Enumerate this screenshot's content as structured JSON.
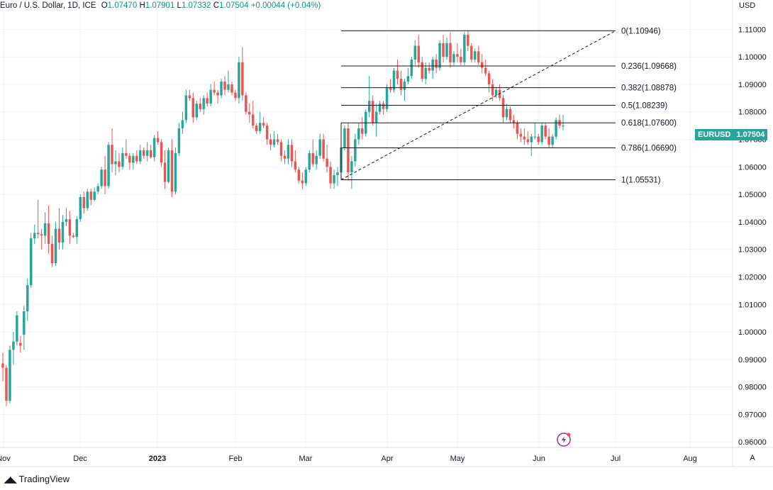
{
  "legend": {
    "title": "Euro / U.S. Dollar, 1D, ICE",
    "open_label": "O",
    "open": "1.07470",
    "high_label": "H",
    "high": "1.07901",
    "low_label": "L",
    "low": "1.07332",
    "close_label": "C",
    "close": "1.07504",
    "change": "+0.00044 (+0.04%)"
  },
  "currency": "USD",
  "price_tag": {
    "symbol": "EURUSD",
    "price": "1.07504"
  },
  "watermark": {
    "text": "TradingView"
  },
  "auto_button": "A",
  "colors": {
    "up": "#26a69a",
    "down": "#ef5350",
    "grid": "#f0f3fa",
    "fib": "#131722",
    "accent": "#9c27b0"
  },
  "chart_data": {
    "type": "candlestick",
    "symbol": "EURUSD",
    "timeframe": "1D",
    "x_ticks": [
      "Nov",
      "Dec",
      "2023",
      "Feb",
      "Mar",
      "Apr",
      "May",
      "Jun",
      "Jul",
      "Aug"
    ],
    "y_ticks": [
      "0.96000",
      "0.97000",
      "0.98000",
      "0.99000",
      "1.00000",
      "1.01000",
      "1.02000",
      "1.03000",
      "1.04000",
      "1.05000",
      "1.06000",
      "1.07000",
      "1.08000",
      "1.09000",
      "1.10000",
      "1.11000"
    ],
    "ylim": [
      0.958,
      1.1155
    ],
    "fibonacci": [
      {
        "level": "0",
        "price": 1.10946
      },
      {
        "level": "0.236",
        "price": 1.09668
      },
      {
        "level": "0.382",
        "price": 1.08878
      },
      {
        "level": "0.5",
        "price": 1.08239
      },
      {
        "level": "0.618",
        "price": 1.076
      },
      {
        "level": "0.786",
        "price": 1.0669
      },
      {
        "level": "1",
        "price": 1.05531
      }
    ],
    "candles": [
      [
        0.9885,
        0.9925,
        0.982,
        0.987
      ],
      [
        0.987,
        0.988,
        0.973,
        0.975
      ],
      [
        0.975,
        0.995,
        0.974,
        0.9935
      ],
      [
        0.9935,
        1.0,
        0.988,
        0.9965
      ],
      [
        0.9965,
        1.0075,
        0.995,
        1.006
      ],
      [
        0.996,
        0.9985,
        0.9925,
        0.995
      ],
      [
        0.999,
        1.0095,
        0.9935,
        1.0075
      ],
      [
        1.0075,
        1.0195,
        1.004,
        1.017
      ],
      [
        1.017,
        1.036,
        1.016,
        1.034
      ],
      [
        1.034,
        1.039,
        1.032,
        1.036
      ],
      [
        1.036,
        1.048,
        1.034,
        1.0355
      ],
      [
        1.0355,
        1.0375,
        1.03,
        1.035
      ],
      [
        1.035,
        1.0435,
        1.032,
        1.0395
      ],
      [
        1.0395,
        1.046,
        1.0285,
        1.032
      ],
      [
        1.032,
        1.035,
        1.0235,
        1.025
      ],
      [
        1.025,
        1.04,
        1.024,
        1.0375
      ],
      [
        1.0375,
        1.045,
        1.03,
        1.0325
      ],
      [
        1.0325,
        1.0425,
        1.03,
        1.04
      ],
      [
        1.04,
        1.045,
        1.0385,
        1.041
      ],
      [
        1.041,
        1.044,
        1.032,
        1.035
      ],
      [
        1.035,
        1.036,
        1.034,
        1.0345
      ],
      [
        1.0345,
        1.042,
        1.032,
        1.041
      ],
      [
        1.041,
        1.05,
        1.04,
        1.049
      ],
      [
        1.049,
        1.051,
        1.043,
        1.045
      ],
      [
        1.045,
        1.052,
        1.044,
        1.051
      ],
      [
        1.051,
        1.052,
        1.046,
        1.048
      ],
      [
        1.048,
        1.0525,
        1.0475,
        1.051
      ],
      [
        1.051,
        1.054,
        1.05,
        1.053
      ],
      [
        1.053,
        1.06,
        1.052,
        1.059
      ],
      [
        1.059,
        1.064,
        1.05,
        1.053
      ],
      [
        1.053,
        1.069,
        1.052,
        1.068
      ],
      [
        1.068,
        1.074,
        1.058,
        1.061
      ],
      [
        1.061,
        1.066,
        1.057,
        1.062
      ],
      [
        1.062,
        1.065,
        1.058,
        1.06
      ],
      [
        1.06,
        1.067,
        1.059,
        1.065
      ],
      [
        1.065,
        1.07,
        1.063,
        1.064
      ],
      [
        1.064,
        1.065,
        1.059,
        1.0615
      ],
      [
        1.0615,
        1.065,
        1.059,
        1.064
      ],
      [
        1.064,
        1.066,
        1.061,
        1.062
      ],
      [
        1.062,
        1.068,
        1.061,
        1.066
      ],
      [
        1.066,
        1.067,
        1.063,
        1.064
      ],
      [
        1.064,
        1.069,
        1.062,
        1.066
      ],
      [
        1.066,
        1.068,
        1.063,
        1.0635
      ],
      [
        1.0635,
        1.0715,
        1.062,
        1.0705
      ],
      [
        1.0705,
        1.073,
        1.068,
        1.069
      ],
      [
        1.069,
        1.07,
        1.06,
        1.0615
      ],
      [
        1.0615,
        1.066,
        1.052,
        1.0545
      ],
      [
        1.0545,
        1.067,
        1.054,
        1.066
      ],
      [
        1.066,
        1.07,
        1.049,
        1.051
      ],
      [
        1.051,
        1.067,
        1.05,
        1.065
      ],
      [
        1.065,
        1.076,
        1.064,
        1.074
      ],
      [
        1.074,
        1.08,
        1.072,
        1.077
      ],
      [
        1.077,
        1.088,
        1.076,
        1.086
      ],
      [
        1.086,
        1.088,
        1.084,
        1.085
      ],
      [
        1.085,
        1.087,
        1.076,
        1.078
      ],
      [
        1.078,
        1.084,
        1.077,
        1.083
      ],
      [
        1.083,
        1.085,
        1.08,
        1.081
      ],
      [
        1.081,
        1.086,
        1.079,
        1.085
      ],
      [
        1.085,
        1.087,
        1.082,
        1.083
      ],
      [
        1.083,
        1.09,
        1.082,
        1.088
      ],
      [
        1.088,
        1.091,
        1.086,
        1.087
      ],
      [
        1.087,
        1.088,
        1.083,
        1.086
      ],
      [
        1.086,
        1.092,
        1.085,
        1.091
      ],
      [
        1.091,
        1.093,
        1.086,
        1.088
      ],
      [
        1.088,
        1.095,
        1.087,
        1.09
      ],
      [
        1.09,
        1.091,
        1.086,
        1.087
      ],
      [
        1.087,
        1.088,
        1.084,
        1.085
      ],
      [
        1.085,
        1.1,
        1.083,
        1.098
      ],
      [
        1.098,
        1.1035,
        1.084,
        1.086
      ],
      [
        1.086,
        1.087,
        1.079,
        1.08
      ],
      [
        1.08,
        1.083,
        1.076,
        1.079
      ],
      [
        1.079,
        1.084,
        1.074,
        1.075
      ],
      [
        1.075,
        1.076,
        1.072,
        1.073
      ],
      [
        1.073,
        1.08,
        1.072,
        1.076
      ],
      [
        1.076,
        1.078,
        1.074,
        1.075
      ],
      [
        1.075,
        1.076,
        1.068,
        1.07
      ],
      [
        1.07,
        1.072,
        1.066,
        1.068
      ],
      [
        1.068,
        1.073,
        1.067,
        1.07
      ],
      [
        1.07,
        1.072,
        1.068,
        1.069
      ],
      [
        1.069,
        1.07,
        1.062,
        1.064
      ],
      [
        1.064,
        1.066,
        1.061,
        1.063
      ],
      [
        1.063,
        1.07,
        1.061,
        1.068
      ],
      [
        1.068,
        1.07,
        1.06,
        1.062
      ],
      [
        1.062,
        1.066,
        1.058,
        1.059
      ],
      [
        1.059,
        1.06,
        1.054,
        1.055
      ],
      [
        1.055,
        1.058,
        1.052,
        1.054
      ],
      [
        1.054,
        1.06,
        1.053,
        1.059
      ],
      [
        1.059,
        1.066,
        1.058,
        1.065
      ],
      [
        1.065,
        1.07,
        1.06,
        1.061
      ],
      [
        1.061,
        1.066,
        1.059,
        1.064
      ],
      [
        1.064,
        1.072,
        1.063,
        1.07
      ],
      [
        1.07,
        1.072,
        1.062,
        1.063
      ],
      [
        1.063,
        1.068,
        1.058,
        1.06
      ],
      [
        1.06,
        1.062,
        1.052,
        1.054
      ],
      [
        1.054,
        1.059,
        1.052,
        1.057
      ],
      [
        1.057,
        1.06,
        1.053,
        1.058
      ],
      [
        1.058,
        1.068,
        1.057,
        1.067
      ],
      [
        1.067,
        1.075,
        1.066,
        1.074
      ],
      [
        1.074,
        1.076,
        1.055,
        1.058
      ],
      [
        1.058,
        1.064,
        1.052,
        1.062
      ],
      [
        1.062,
        1.072,
        1.06,
        1.07
      ],
      [
        1.07,
        1.076,
        1.068,
        1.074
      ],
      [
        1.074,
        1.078,
        1.07,
        1.072
      ],
      [
        1.072,
        1.081,
        1.071,
        1.08
      ],
      [
        1.08,
        1.093,
        1.078,
        1.084
      ],
      [
        1.084,
        1.086,
        1.075,
        1.076
      ],
      [
        1.076,
        1.083,
        1.071,
        1.08
      ],
      [
        1.08,
        1.084,
        1.079,
        1.083
      ],
      [
        1.083,
        1.084,
        1.079,
        1.081
      ],
      [
        1.081,
        1.09,
        1.08,
        1.089
      ],
      [
        1.089,
        1.092,
        1.087,
        1.088
      ],
      [
        1.088,
        1.096,
        1.087,
        1.095
      ],
      [
        1.095,
        1.099,
        1.09,
        1.092
      ],
      [
        1.092,
        1.095,
        1.086,
        1.088
      ],
      [
        1.088,
        1.092,
        1.084,
        1.091
      ],
      [
        1.091,
        1.096,
        1.09,
        1.093
      ],
      [
        1.093,
        1.1,
        1.092,
        1.099
      ],
      [
        1.099,
        1.106,
        1.097,
        1.104
      ],
      [
        1.104,
        1.108,
        1.096,
        1.098
      ],
      [
        1.098,
        1.1,
        1.091,
        1.092
      ],
      [
        1.092,
        1.098,
        1.09,
        1.096
      ],
      [
        1.096,
        1.098,
        1.094,
        1.095
      ],
      [
        1.095,
        1.1,
        1.092,
        1.099
      ],
      [
        1.099,
        1.101,
        1.094,
        1.096
      ],
      [
        1.096,
        1.106,
        1.095,
        1.105
      ],
      [
        1.105,
        1.108,
        1.098,
        1.1
      ],
      [
        1.1,
        1.107,
        1.099,
        1.105
      ],
      [
        1.105,
        1.109,
        1.096,
        1.098
      ],
      [
        1.098,
        1.102,
        1.097,
        1.101
      ],
      [
        1.101,
        1.105,
        1.098,
        1.1
      ],
      [
        1.1,
        1.103,
        1.097,
        1.098
      ],
      [
        1.098,
        1.109,
        1.097,
        1.108
      ],
      [
        1.108,
        1.1095,
        1.102,
        1.104
      ],
      [
        1.104,
        1.105,
        1.098,
        1.099
      ],
      [
        1.099,
        1.103,
        1.098,
        1.102
      ],
      [
        1.102,
        1.104,
        1.097,
        1.098
      ],
      [
        1.098,
        1.101,
        1.094,
        1.096
      ],
      [
        1.096,
        1.099,
        1.093,
        1.094
      ],
      [
        1.094,
        1.095,
        1.087,
        1.09
      ],
      [
        1.09,
        1.092,
        1.084,
        1.086
      ],
      [
        1.086,
        1.089,
        1.085,
        1.088
      ],
      [
        1.088,
        1.09,
        1.084,
        1.085
      ],
      [
        1.085,
        1.086,
        1.076,
        1.078
      ],
      [
        1.078,
        1.083,
        1.077,
        1.081
      ],
      [
        1.081,
        1.082,
        1.076,
        1.077
      ],
      [
        1.077,
        1.079,
        1.074,
        1.076
      ],
      [
        1.076,
        1.077,
        1.07,
        1.072
      ],
      [
        1.072,
        1.074,
        1.069,
        1.071
      ],
      [
        1.071,
        1.074,
        1.068,
        1.07
      ],
      [
        1.07,
        1.073,
        1.068,
        1.069
      ],
      [
        1.069,
        1.072,
        1.064,
        1.071
      ],
      [
        1.071,
        1.076,
        1.07,
        1.071
      ],
      [
        1.071,
        1.072,
        1.068,
        1.069
      ],
      [
        1.069,
        1.076,
        1.068,
        1.075
      ],
      [
        1.075,
        1.076,
        1.07,
        1.071
      ],
      [
        1.071,
        1.074,
        1.067,
        1.068
      ],
      [
        1.068,
        1.072,
        1.067,
        1.071
      ],
      [
        1.071,
        1.078,
        1.07,
        1.077
      ],
      [
        1.077,
        1.079,
        1.074,
        1.075
      ],
      [
        1.0747,
        1.079,
        1.0733,
        1.075
      ]
    ]
  }
}
